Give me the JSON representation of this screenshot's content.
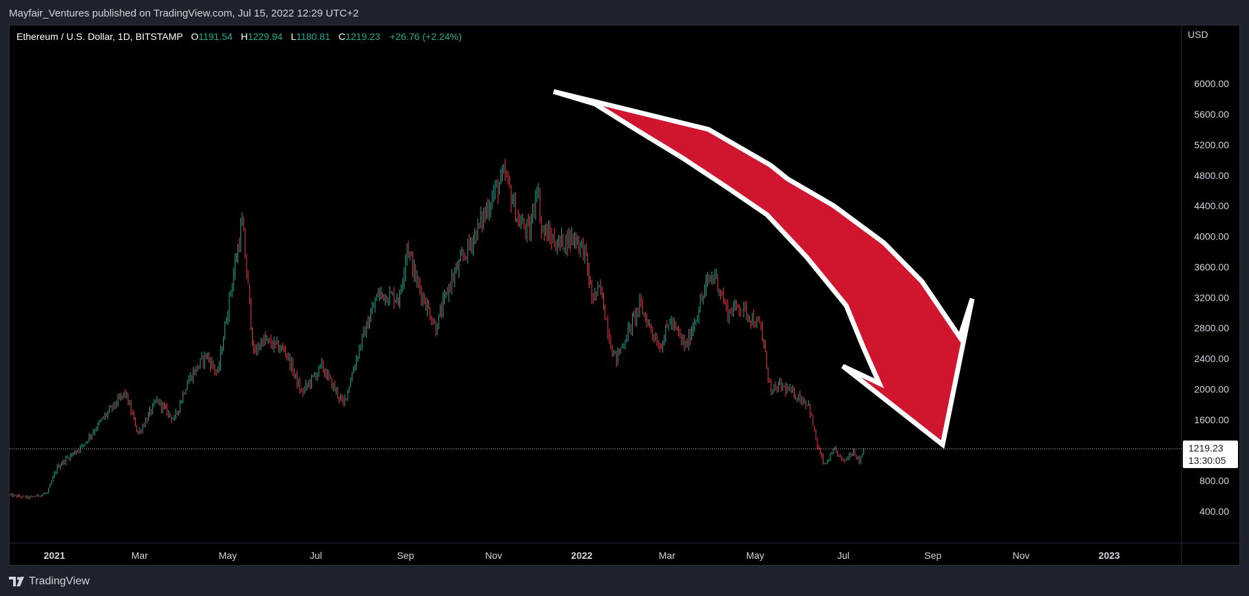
{
  "header": {
    "publisher_line": "Mayfair_Ventures published on TradingView.com, Jul 15, 2022 12:29 UTC+2"
  },
  "legend": {
    "symbol": "Ethereum / U.S. Dollar, 1D, BITSTAMP",
    "open_label": "O",
    "open": "1191.54",
    "high_label": "H",
    "high": "1229.94",
    "low_label": "L",
    "low": "1180.81",
    "close_label": "C",
    "close": "1219.23",
    "change": "+26.76 (+2.24%)"
  },
  "price_tag": {
    "price": "1219.23",
    "countdown": "13:30:05"
  },
  "footer": {
    "brand": "TradingView"
  },
  "colors": {
    "up": "#22ab94",
    "down": "#f23645",
    "arrow_fill": "#d0152e",
    "arrow_stroke": "#ffffff",
    "background": "#000000",
    "frame": "#1e222d"
  },
  "chart_data": {
    "type": "candlestick",
    "currency_label": "USD",
    "y_ticks": [
      "400.00",
      "800.00",
      "1600.00",
      "2000.00",
      "2400.00",
      "2800.00",
      "3200.00",
      "3600.00",
      "4000.00",
      "4400.00",
      "4800.00",
      "5200.00",
      "5600.00",
      "6000.00"
    ],
    "x_ticks": [
      {
        "label": "2021",
        "date": "2021-01-01",
        "bold": true
      },
      {
        "label": "Mar",
        "date": "2021-03-01",
        "bold": false
      },
      {
        "label": "May",
        "date": "2021-05-01",
        "bold": false
      },
      {
        "label": "Jul",
        "date": "2021-07-01",
        "bold": false
      },
      {
        "label": "Sep",
        "date": "2021-09-01",
        "bold": false
      },
      {
        "label": "Nov",
        "date": "2021-11-01",
        "bold": false
      },
      {
        "label": "2022",
        "date": "2022-01-01",
        "bold": true
      },
      {
        "label": "Mar",
        "date": "2022-03-01",
        "bold": false
      },
      {
        "label": "May",
        "date": "2022-05-01",
        "bold": false
      },
      {
        "label": "Jul",
        "date": "2022-07-01",
        "bold": false
      },
      {
        "label": "Sep",
        "date": "2022-09-01",
        "bold": false
      },
      {
        "label": "Nov",
        "date": "2022-11-01",
        "bold": false
      },
      {
        "label": "2023",
        "date": "2023-01-01",
        "bold": true
      }
    ],
    "x_range": [
      "2020-12-01",
      "2023-03-01"
    ],
    "y_range": [
      0,
      6000
    ],
    "current_price": 1219.23,
    "price_path": [
      [
        "2020-12-01",
        610
      ],
      [
        "2020-12-15",
        580
      ],
      [
        "2020-12-27",
        640
      ],
      [
        "2021-01-03",
        980
      ],
      [
        "2021-01-10",
        1100
      ],
      [
        "2021-01-20",
        1250
      ],
      [
        "2021-02-05",
        1650
      ],
      [
        "2021-02-19",
        1950
      ],
      [
        "2021-02-28",
        1420
      ],
      [
        "2021-03-13",
        1850
      ],
      [
        "2021-03-25",
        1600
      ],
      [
        "2021-04-03",
        2100
      ],
      [
        "2021-04-16",
        2450
      ],
      [
        "2021-04-24",
        2200
      ],
      [
        "2021-05-03",
        3300
      ],
      [
        "2021-05-11",
        4180
      ],
      [
        "2021-05-19",
        2450
      ],
      [
        "2021-05-25",
        2650
      ],
      [
        "2021-06-10",
        2500
      ],
      [
        "2021-06-21",
        1950
      ],
      [
        "2021-07-05",
        2300
      ],
      [
        "2021-07-20",
        1800
      ],
      [
        "2021-08-01",
        2600
      ],
      [
        "2021-08-13",
        3250
      ],
      [
        "2021-08-28",
        3200
      ],
      [
        "2021-09-02",
        3900
      ],
      [
        "2021-09-08",
        3450
      ],
      [
        "2021-09-22",
        2800
      ],
      [
        "2021-10-02",
        3400
      ],
      [
        "2021-10-21",
        4100
      ],
      [
        "2021-11-02",
        4600
      ],
      [
        "2021-11-09",
        4800
      ],
      [
        "2021-11-18",
        4200
      ],
      [
        "2021-11-26",
        4050
      ],
      [
        "2021-12-01",
        4700
      ],
      [
        "2021-12-04",
        4100
      ],
      [
        "2021-12-15",
        3900
      ],
      [
        "2021-12-27",
        4000
      ],
      [
        "2022-01-03",
        3800
      ],
      [
        "2022-01-08",
        3200
      ],
      [
        "2022-01-14",
        3300
      ],
      [
        "2022-01-22",
        2500
      ],
      [
        "2022-01-25",
        2400
      ],
      [
        "2022-02-10",
        3100
      ],
      [
        "2022-02-24",
        2550
      ],
      [
        "2022-03-03",
        2900
      ],
      [
        "2022-03-14",
        2550
      ],
      [
        "2022-03-29",
        3400
      ],
      [
        "2022-04-03",
        3500
      ],
      [
        "2022-04-12",
        3000
      ],
      [
        "2022-04-20",
        3100
      ],
      [
        "2022-05-05",
        2800
      ],
      [
        "2022-05-12",
        1950
      ],
      [
        "2022-05-18",
        2050
      ],
      [
        "2022-05-31",
        1900
      ],
      [
        "2022-06-07",
        1800
      ],
      [
        "2022-06-13",
        1250
      ],
      [
        "2022-06-18",
        1000
      ],
      [
        "2022-06-25",
        1200
      ],
      [
        "2022-07-01",
        1050
      ],
      [
        "2022-07-08",
        1200
      ],
      [
        "2022-07-12",
        1050
      ],
      [
        "2022-07-15",
        1219
      ]
    ],
    "annotation": {
      "type": "arrow",
      "direction": "down",
      "color": "#d0152e"
    }
  }
}
